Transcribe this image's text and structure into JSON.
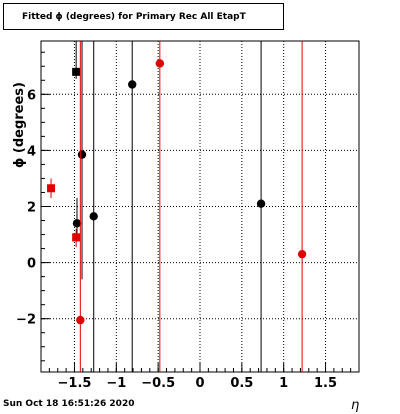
{
  "chart_data": {
    "type": "scatter",
    "title": "Fitted ϕ (degrees) for Primary Rec All EtapT",
    "xlabel": "η",
    "ylabel": "ϕ (degrees)",
    "xlim": [
      -1.9,
      1.9
    ],
    "ylim": [
      -3.9,
      7.9
    ],
    "x_ticks": [
      "-1.5",
      "-1",
      "-0.5",
      "0",
      "0.5",
      "1",
      "1.5"
    ],
    "y_ticks": [
      "-2",
      "0",
      "2",
      "4",
      "6"
    ],
    "grid": true,
    "colors": {
      "black": "#000000",
      "red": "#e00000"
    },
    "series": [
      {
        "color": "black",
        "points": [
          {
            "marker": "square",
            "x": -1.48,
            "y": 6.8,
            "ylo": 6.55,
            "yhi": 7.9
          },
          {
            "marker": "circle",
            "x": -1.41,
            "y": 3.85,
            "ylo": -0.6,
            "yhi": 7.9
          },
          {
            "marker": "circle",
            "x": -1.47,
            "y": 1.4,
            "ylo": 0.75,
            "yhi": 2.3
          },
          {
            "marker": "circle",
            "x": -1.27,
            "y": 1.65,
            "ylo": -3.9,
            "yhi": 7.9
          },
          {
            "marker": "circle",
            "x": -0.81,
            "y": 6.35,
            "ylo": -3.9,
            "yhi": 7.9
          },
          {
            "marker": "circle",
            "x": 0.73,
            "y": 2.1,
            "ylo": -3.9,
            "yhi": 7.9
          }
        ]
      },
      {
        "color": "red",
        "points": [
          {
            "marker": "square",
            "x": -1.78,
            "y": 2.65,
            "ylo": 2.3,
            "yhi": 3.0
          },
          {
            "marker": "square",
            "x": -1.48,
            "y": 0.9,
            "ylo": 0.55,
            "yhi": 1.2
          },
          {
            "marker": "circle",
            "x": -1.43,
            "y": -2.05,
            "ylo": -3.9,
            "yhi": 7.9
          },
          {
            "marker": "circle",
            "x": -0.48,
            "y": 7.1,
            "ylo": -3.9,
            "yhi": 7.9
          },
          {
            "marker": "circle",
            "x": 1.22,
            "y": 0.3,
            "ylo": -3.9,
            "yhi": 7.9
          }
        ]
      }
    ],
    "footer": "Sun Oct 18 16:51:26 2020"
  }
}
